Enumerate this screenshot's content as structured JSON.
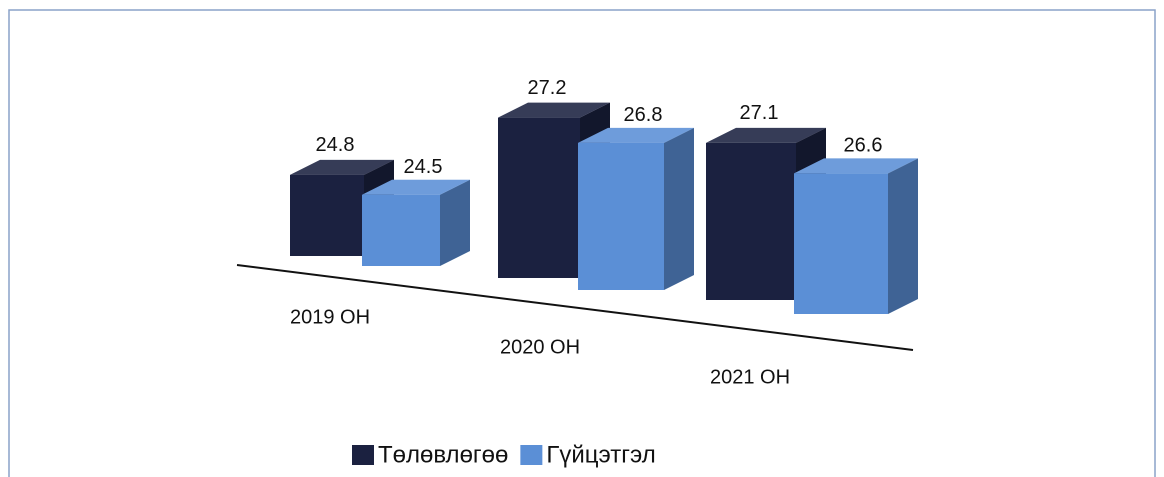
{
  "chart_data": {
    "type": "bar",
    "categories": [
      "2019 ОН",
      "2020 ОН",
      "2021 ОН"
    ],
    "series": [
      {
        "name": "Төлөвлөгөө",
        "color": "#1b2140",
        "values": [
          24.8,
          27.2,
          27.1
        ]
      },
      {
        "name": "Гүйцэтгэл",
        "color": "#5b8fd6",
        "values": [
          24.5,
          26.8,
          26.6
        ]
      }
    ],
    "legend": "bottom"
  }
}
